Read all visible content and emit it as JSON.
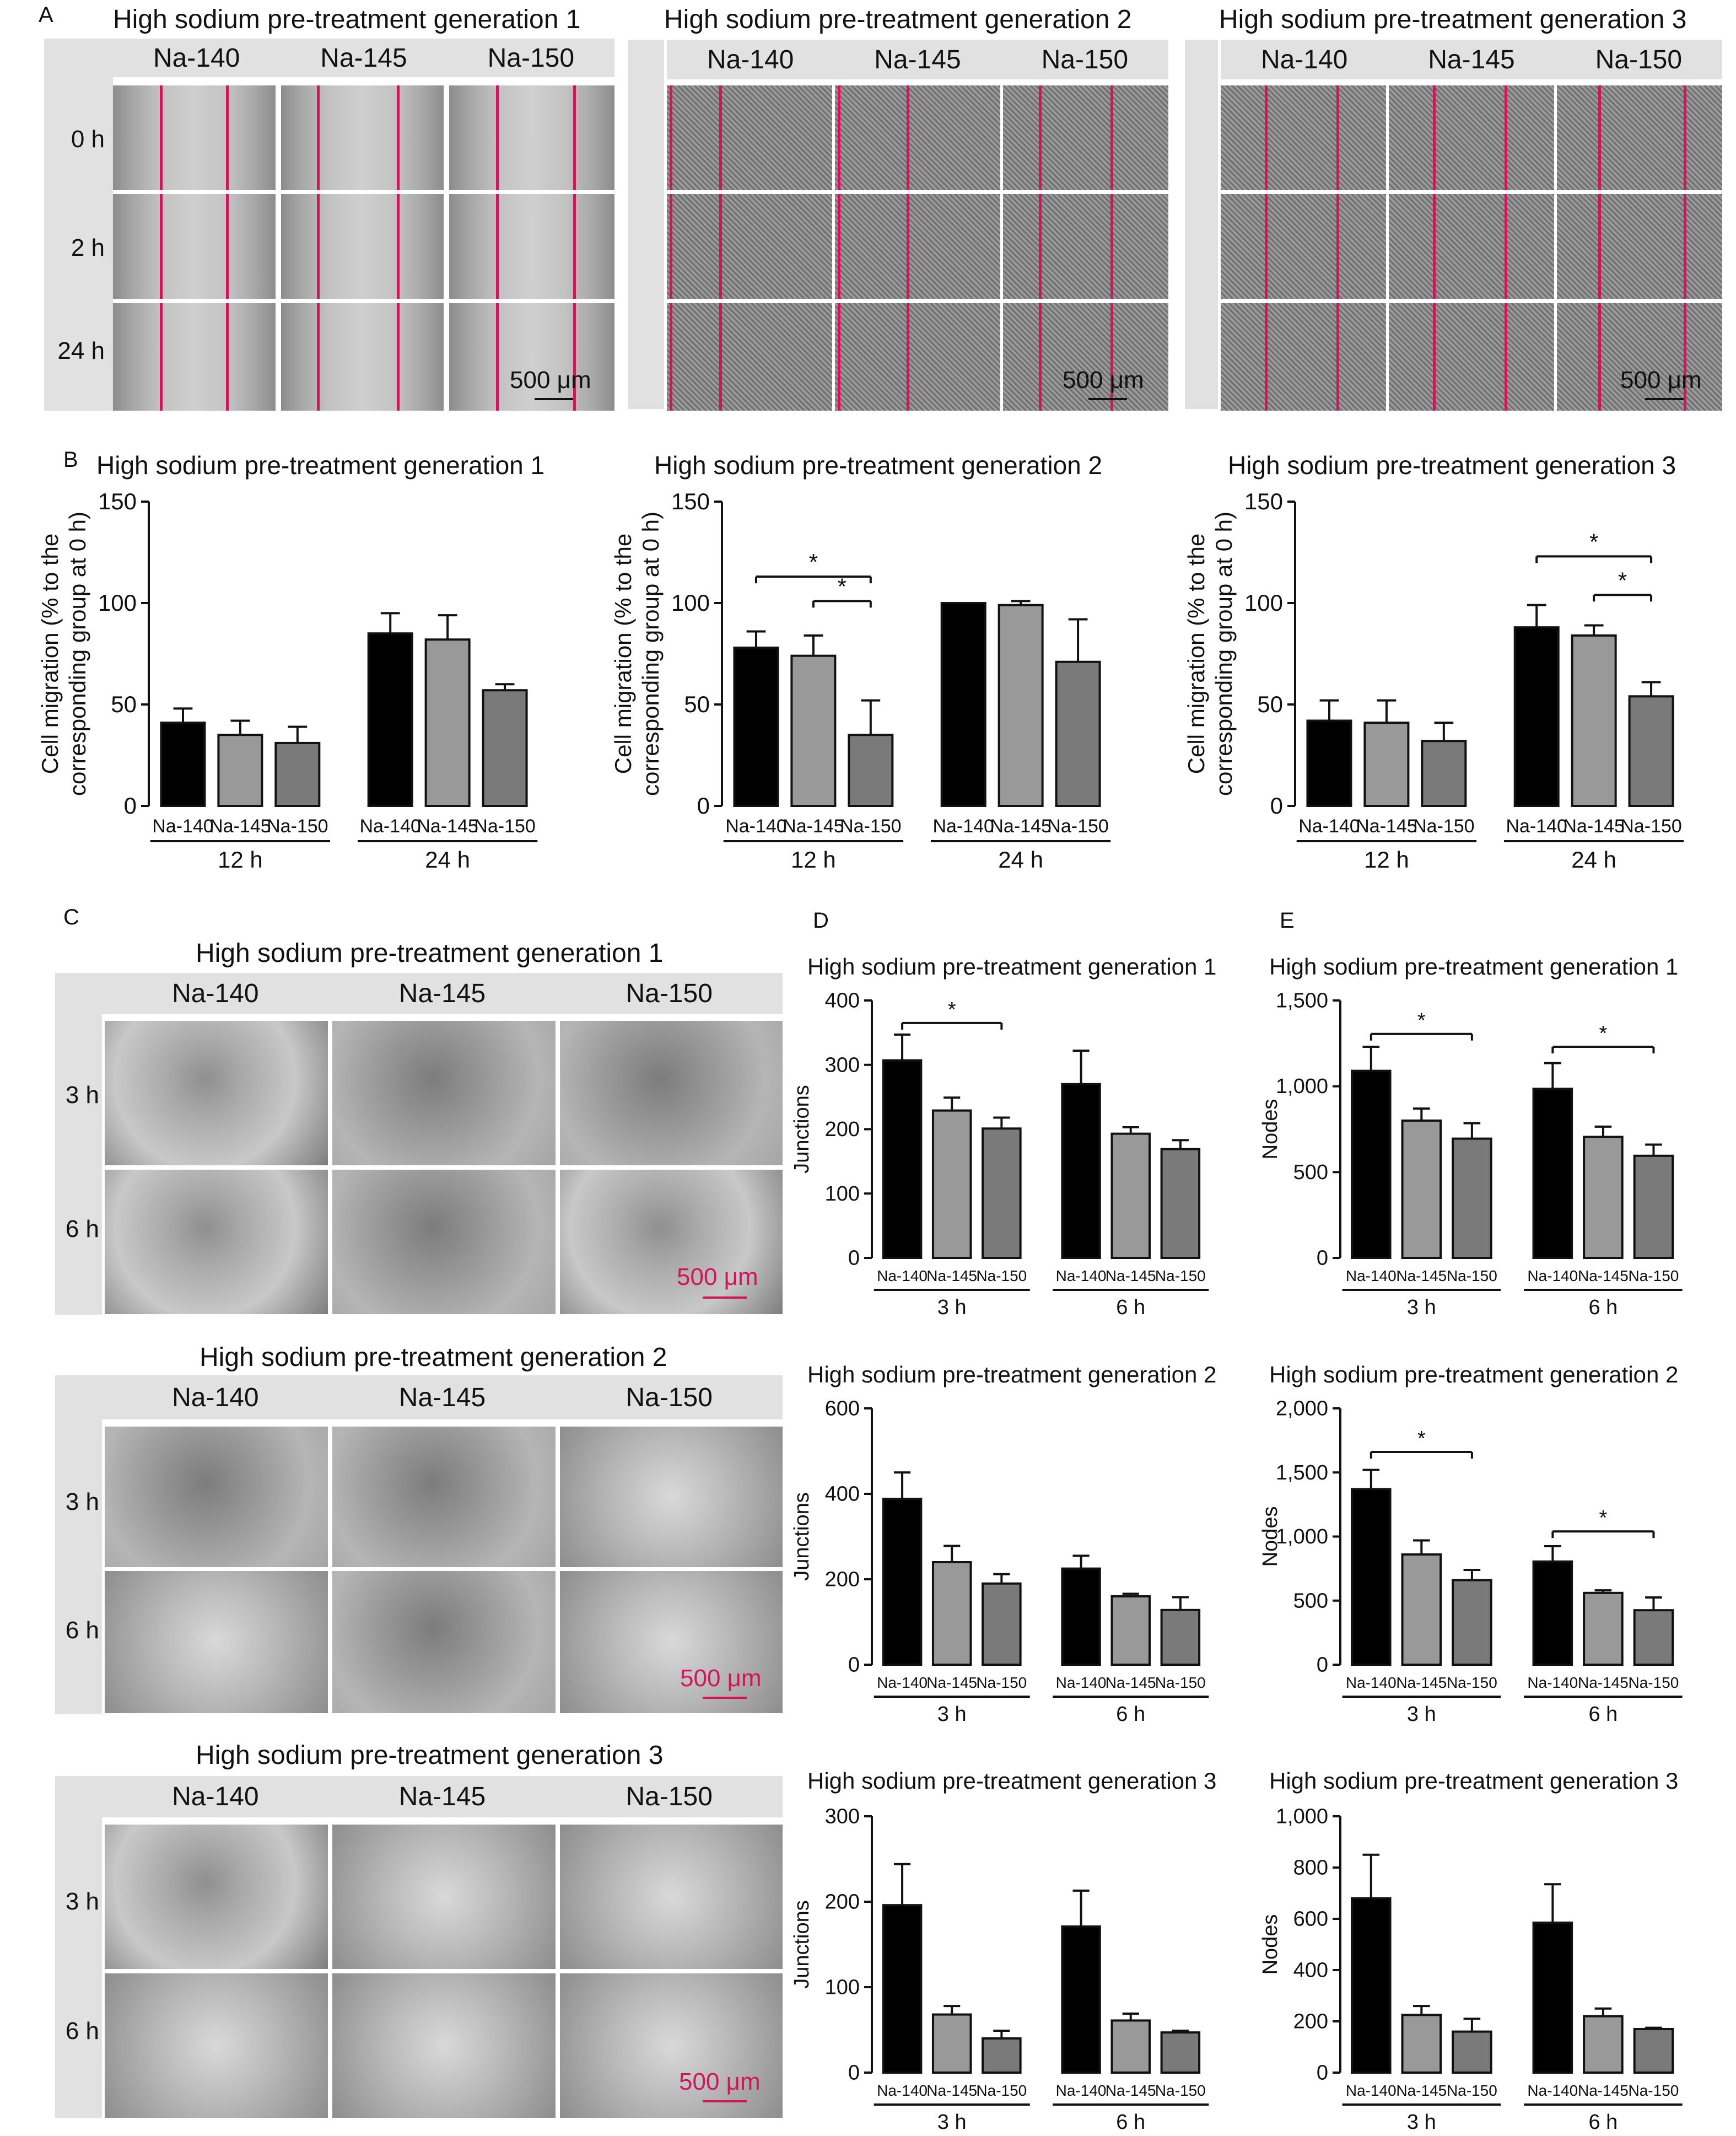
{
  "panel_letters": {
    "a": "A",
    "b": "B",
    "c": "C",
    "d": "D",
    "e": "E"
  },
  "panelA": {
    "groups": [
      {
        "title": "High sodium pre-treatment generation 1",
        "columns": [
          "Na-140",
          "Na-145",
          "Na-150"
        ]
      },
      {
        "title": "High sodium pre-treatment generation 2",
        "columns": [
          "Na-140",
          "Na-145",
          "Na-150"
        ]
      },
      {
        "title": "High sodium pre-treatment generation 3",
        "columns": [
          "Na-140",
          "Na-145",
          "Na-150"
        ]
      }
    ],
    "rows": [
      "0 h",
      "2 h",
      "24 h"
    ],
    "scale_bar": "500 μm"
  },
  "panelC": {
    "groups": [
      {
        "title": "High sodium pre-treatment generation 1",
        "columns": [
          "Na-140",
          "Na-145",
          "Na-150"
        ]
      },
      {
        "title": "High sodium pre-treatment generation 2",
        "columns": [
          "Na-140",
          "Na-145",
          "Na-150"
        ]
      },
      {
        "title": "High sodium pre-treatment generation 3",
        "columns": [
          "Na-140",
          "Na-145",
          "Na-150"
        ]
      }
    ],
    "rows": [
      "3 h",
      "6 h"
    ],
    "scale_bar": "500 μm",
    "scale_color": "#d4145a"
  },
  "colors": {
    "na140": "#000000",
    "na145": "#999999",
    "na150": "#7a7a7a",
    "red_line": "#d4145a"
  },
  "chart_data": [
    {
      "id": "B1",
      "type": "bar",
      "title": "High sodium pre-treatment generation 1",
      "ylabel": "Cell migration (% to the corresponding group at 0 h)",
      "ylim": [
        0,
        150
      ],
      "yticks": [
        "0",
        "50",
        "100",
        "150"
      ],
      "groups": [
        "12 h",
        "24 h"
      ],
      "categories": [
        "Na-140",
        "Na-145",
        "Na-150"
      ],
      "values": [
        [
          41,
          35,
          31
        ],
        [
          85,
          82,
          57
        ]
      ],
      "errors": [
        [
          7,
          7,
          8
        ],
        [
          10,
          12,
          3
        ]
      ],
      "sig": []
    },
    {
      "id": "B2",
      "type": "bar",
      "title": "High sodium pre-treatment generation 2",
      "ylabel": "Cell migration (% to the corresponding group at 0 h)",
      "ylim": [
        0,
        150
      ],
      "yticks": [
        "0",
        "50",
        "100",
        "150"
      ],
      "groups": [
        "12 h",
        "24 h"
      ],
      "categories": [
        "Na-140",
        "Na-145",
        "Na-150"
      ],
      "values": [
        [
          78,
          74,
          35
        ],
        [
          100,
          99,
          71
        ]
      ],
      "errors": [
        [
          8,
          10,
          17
        ],
        [
          0,
          2,
          21
        ]
      ],
      "sig": [
        {
          "g": 0,
          "from": 0,
          "to": 2,
          "y": 113,
          "star": "*"
        },
        {
          "g": 0,
          "from": 1,
          "to": 2,
          "y": 101,
          "star": "*"
        }
      ]
    },
    {
      "id": "B3",
      "type": "bar",
      "title": "High sodium pre-treatment generation 3",
      "ylabel": "Cell migration (% to the corresponding group at 0 h)",
      "ylim": [
        0,
        150
      ],
      "yticks": [
        "0",
        "50",
        "100",
        "150"
      ],
      "groups": [
        "12 h",
        "24 h"
      ],
      "categories": [
        "Na-140",
        "Na-145",
        "Na-150"
      ],
      "values": [
        [
          42,
          41,
          32
        ],
        [
          88,
          84,
          54
        ]
      ],
      "errors": [
        [
          10,
          11,
          9
        ],
        [
          11,
          5,
          7
        ]
      ],
      "sig": [
        {
          "g": 1,
          "from": 0,
          "to": 2,
          "y": 123,
          "star": "*"
        },
        {
          "g": 1,
          "from": 1,
          "to": 2,
          "y": 104,
          "star": "*"
        }
      ]
    },
    {
      "id": "D1",
      "type": "bar",
      "title": "High sodium pre-treatment generation 1",
      "ylabel": "Junctions",
      "ylim": [
        0,
        400
      ],
      "yticks": [
        "0",
        "100",
        "200",
        "300",
        "400"
      ],
      "groups": [
        "3 h",
        "6 h"
      ],
      "categories": [
        "Na-140",
        "Na-145",
        "Na-150"
      ],
      "values": [
        [
          307,
          229,
          201
        ],
        [
          270,
          193,
          169
        ]
      ],
      "errors": [
        [
          40,
          20,
          17
        ],
        [
          52,
          10,
          14
        ]
      ],
      "sig": [
        {
          "g": 0,
          "from": 0,
          "to": 2,
          "y": 365,
          "star": "*"
        }
      ]
    },
    {
      "id": "E1",
      "type": "bar",
      "title": "High sodium pre-treatment generation 1",
      "ylabel": "Nodes",
      "ylim": [
        0,
        1500
      ],
      "yticks": [
        "0",
        "500",
        "1,000",
        "1,500"
      ],
      "groups": [
        "3 h",
        "6 h"
      ],
      "categories": [
        "Na-140",
        "Na-145",
        "Na-150"
      ],
      "values": [
        [
          1090,
          800,
          695
        ],
        [
          985,
          705,
          595
        ]
      ],
      "errors": [
        [
          140,
          70,
          90
        ],
        [
          150,
          60,
          65
        ]
      ],
      "sig": [
        {
          "g": 0,
          "from": 0,
          "to": 2,
          "y": 1305,
          "star": "*"
        },
        {
          "g": 1,
          "from": 0,
          "to": 2,
          "y": 1230,
          "star": "*"
        }
      ]
    },
    {
      "id": "D2",
      "type": "bar",
      "title": "High sodium pre-treatment generation 2",
      "ylabel": "Junctions",
      "ylim": [
        0,
        600
      ],
      "yticks": [
        "0",
        "200",
        "400",
        "600"
      ],
      "groups": [
        "3 h",
        "6 h"
      ],
      "categories": [
        "Na-140",
        "Na-145",
        "Na-150"
      ],
      "values": [
        [
          388,
          240,
          190
        ],
        [
          225,
          160,
          128
        ]
      ],
      "errors": [
        [
          62,
          38,
          22
        ],
        [
          30,
          6,
          30
        ]
      ],
      "sig": []
    },
    {
      "id": "E2",
      "type": "bar",
      "title": "High sodium pre-treatment generation 2",
      "ylabel": "Nodes",
      "ylim": [
        0,
        2000
      ],
      "yticks": [
        "0",
        "500",
        "1,000",
        "1,500",
        "2,000"
      ],
      "groups": [
        "3 h",
        "6 h"
      ],
      "categories": [
        "Na-140",
        "Na-145",
        "Na-150"
      ],
      "values": [
        [
          1370,
          860,
          660
        ],
        [
          805,
          560,
          425
        ]
      ],
      "errors": [
        [
          150,
          110,
          80
        ],
        [
          120,
          20,
          100
        ]
      ],
      "sig": [
        {
          "g": 0,
          "from": 0,
          "to": 2,
          "y": 1660,
          "star": "*"
        },
        {
          "g": 1,
          "from": 0,
          "to": 2,
          "y": 1040,
          "star": "*"
        }
      ]
    },
    {
      "id": "D3",
      "type": "bar",
      "title": "High sodium pre-treatment generation 3",
      "ylabel": "Junctions",
      "ylim": [
        0,
        300
      ],
      "yticks": [
        "0",
        "100",
        "200",
        "300"
      ],
      "groups": [
        "3 h",
        "6 h"
      ],
      "categories": [
        "Na-140",
        "Na-145",
        "Na-150"
      ],
      "values": [
        [
          196,
          68,
          40
        ],
        [
          171,
          61,
          47
        ]
      ],
      "errors": [
        [
          48,
          10,
          9
        ],
        [
          42,
          8,
          2
        ]
      ],
      "sig": []
    },
    {
      "id": "E3",
      "type": "bar",
      "title": "High sodium pre-treatment generation 3",
      "ylabel": "Nodes",
      "ylim": [
        0,
        1000
      ],
      "yticks": [
        "0",
        "200",
        "400",
        "600",
        "800",
        "1,000"
      ],
      "groups": [
        "3 h",
        "6 h"
      ],
      "categories": [
        "Na-140",
        "Na-145",
        "Na-150"
      ],
      "values": [
        [
          680,
          225,
          160
        ],
        [
          585,
          220,
          170
        ]
      ],
      "errors": [
        [
          170,
          35,
          50
        ],
        [
          150,
          30,
          5
        ]
      ],
      "sig": []
    }
  ]
}
